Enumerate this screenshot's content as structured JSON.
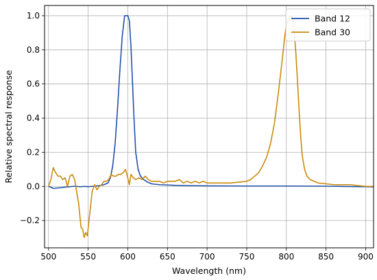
{
  "chart_data": {
    "type": "line",
    "title": "",
    "xlabel": "Wavelength (nm)",
    "ylabel": "Relative spectral response",
    "xlim": [
      495,
      910
    ],
    "ylim": [
      -0.36,
      1.06
    ],
    "xticks": [
      500,
      550,
      600,
      650,
      700,
      750,
      800,
      850,
      900
    ],
    "yticks": [
      -0.2,
      0.0,
      0.2,
      0.4,
      0.6,
      0.8,
      1.0
    ],
    "grid": true,
    "legend_position": "top-right",
    "series": [
      {
        "name": "Band 12",
        "color": "#1f4fa8",
        "x": [
          500,
          503,
          506,
          510,
          515,
          520,
          525,
          530,
          535,
          540,
          545,
          550,
          555,
          560,
          565,
          570,
          575,
          578,
          581,
          584,
          587,
          590,
          593,
          596,
          598,
          600,
          602,
          604,
          606,
          608,
          610,
          613,
          616,
          620,
          625,
          630,
          640,
          650,
          660,
          680,
          700,
          750,
          800,
          850,
          900,
          910
        ],
        "y": [
          0.0,
          -0.005,
          -0.012,
          -0.01,
          -0.008,
          -0.005,
          -0.003,
          0.0,
          0.0,
          -0.002,
          0.0,
          -0.002,
          0.0,
          0.002,
          0.005,
          0.01,
          0.02,
          0.05,
          0.12,
          0.25,
          0.45,
          0.68,
          0.88,
          1.0,
          1.0,
          1.0,
          0.97,
          0.82,
          0.6,
          0.38,
          0.2,
          0.1,
          0.06,
          0.04,
          0.025,
          0.015,
          0.01,
          0.008,
          0.006,
          0.004,
          0.003,
          0.002,
          0.002,
          0.001,
          -0.002,
          -0.003
        ]
      },
      {
        "name": "Band 30",
        "color": "#c98a0a",
        "x": [
          500,
          503,
          506,
          509,
          512,
          515,
          518,
          521,
          524,
          527,
          530,
          533,
          535,
          538,
          541,
          543,
          545,
          547,
          549,
          551,
          553,
          555,
          558,
          561,
          564,
          567,
          570,
          573,
          576,
          579,
          582,
          585,
          588,
          591,
          594,
          597,
          600,
          602,
          604,
          607,
          610,
          614,
          618,
          622,
          626,
          630,
          635,
          640,
          645,
          650,
          655,
          660,
          665,
          670,
          675,
          680,
          685,
          690,
          695,
          700,
          710,
          720,
          730,
          740,
          750,
          755,
          760,
          765,
          770,
          775,
          780,
          785,
          790,
          795,
          798,
          800,
          803,
          806,
          808,
          810,
          812,
          814,
          816,
          818,
          820,
          823,
          826,
          830,
          835,
          840,
          850,
          860,
          870,
          880,
          890,
          900,
          910
        ],
        "y": [
          0.0,
          0.04,
          0.11,
          0.08,
          0.06,
          0.06,
          0.04,
          0.05,
          0.0,
          0.06,
          0.07,
          0.04,
          -0.02,
          -0.1,
          -0.24,
          -0.25,
          -0.3,
          -0.27,
          -0.29,
          -0.2,
          -0.12,
          -0.03,
          0.01,
          -0.02,
          0.0,
          0.01,
          0.03,
          0.03,
          0.04,
          0.07,
          0.06,
          0.06,
          0.07,
          0.07,
          0.08,
          0.1,
          0.05,
          0.01,
          0.07,
          0.05,
          0.04,
          0.05,
          0.04,
          0.06,
          0.04,
          0.03,
          0.03,
          0.03,
          0.02,
          0.03,
          0.03,
          0.03,
          0.04,
          0.02,
          0.03,
          0.02,
          0.03,
          0.02,
          0.03,
          0.02,
          0.02,
          0.02,
          0.02,
          0.025,
          0.03,
          0.04,
          0.06,
          0.08,
          0.12,
          0.17,
          0.25,
          0.37,
          0.55,
          0.75,
          0.88,
          0.95,
          0.98,
          1.0,
          0.98,
          0.9,
          0.78,
          0.62,
          0.45,
          0.3,
          0.18,
          0.1,
          0.06,
          0.04,
          0.03,
          0.02,
          0.015,
          0.01,
          0.01,
          0.01,
          0.005,
          0.0,
          0.0
        ]
      }
    ]
  }
}
